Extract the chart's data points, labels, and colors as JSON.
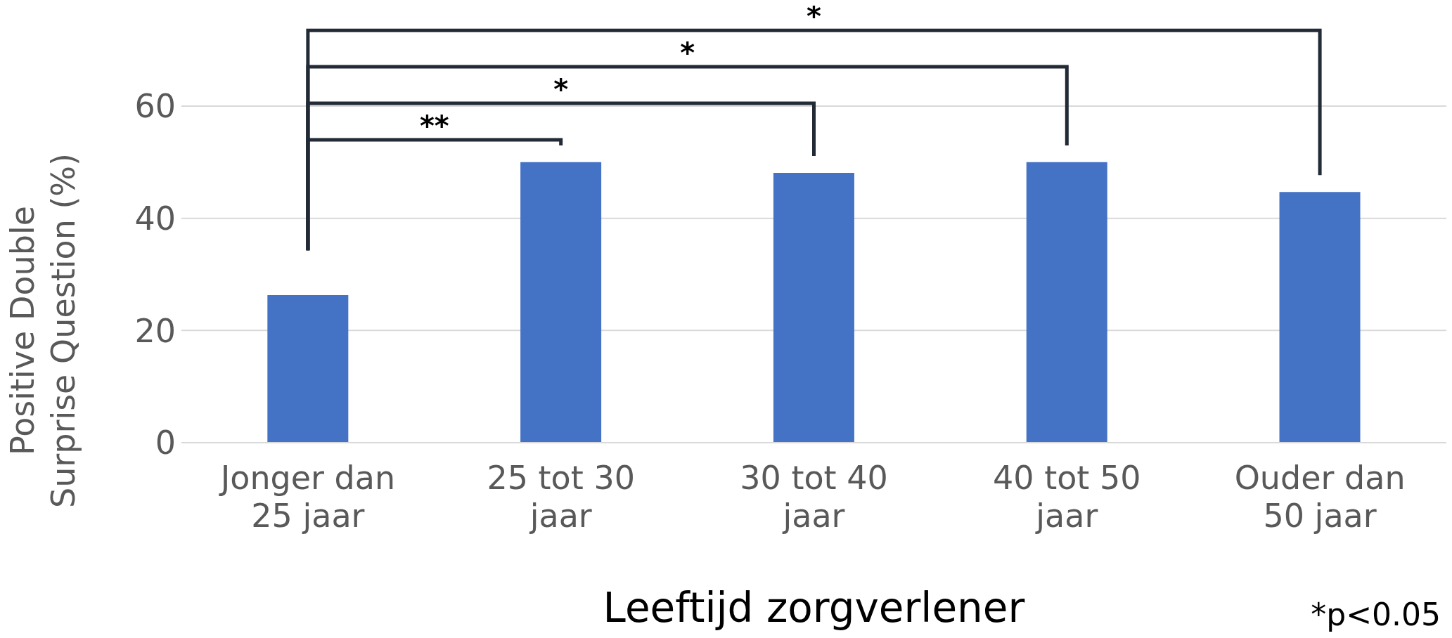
{
  "chart_data": {
    "type": "bar",
    "xlabel": "Leeftijd zorgverlener",
    "ylabel": "Positive Double Surprise Question (%)",
    "categories": [
      "Jonger dan 25 jaar",
      "25 tot 30 jaar",
      "30 tot 40 jaar",
      "40 tot 50 jaar",
      "Ouder dan 50 jaar"
    ],
    "values": [
      26.3,
      50,
      48.1,
      50,
      44.7
    ],
    "color": "#4472c4",
    "ylim": [
      0,
      60
    ],
    "legend": false,
    "yticks": [
      0,
      20,
      40,
      60
    ],
    "grid": "y",
    "annotations": [
      "**",
      "*",
      "*",
      "*",
      "*p<0.05"
    ]
  }
}
